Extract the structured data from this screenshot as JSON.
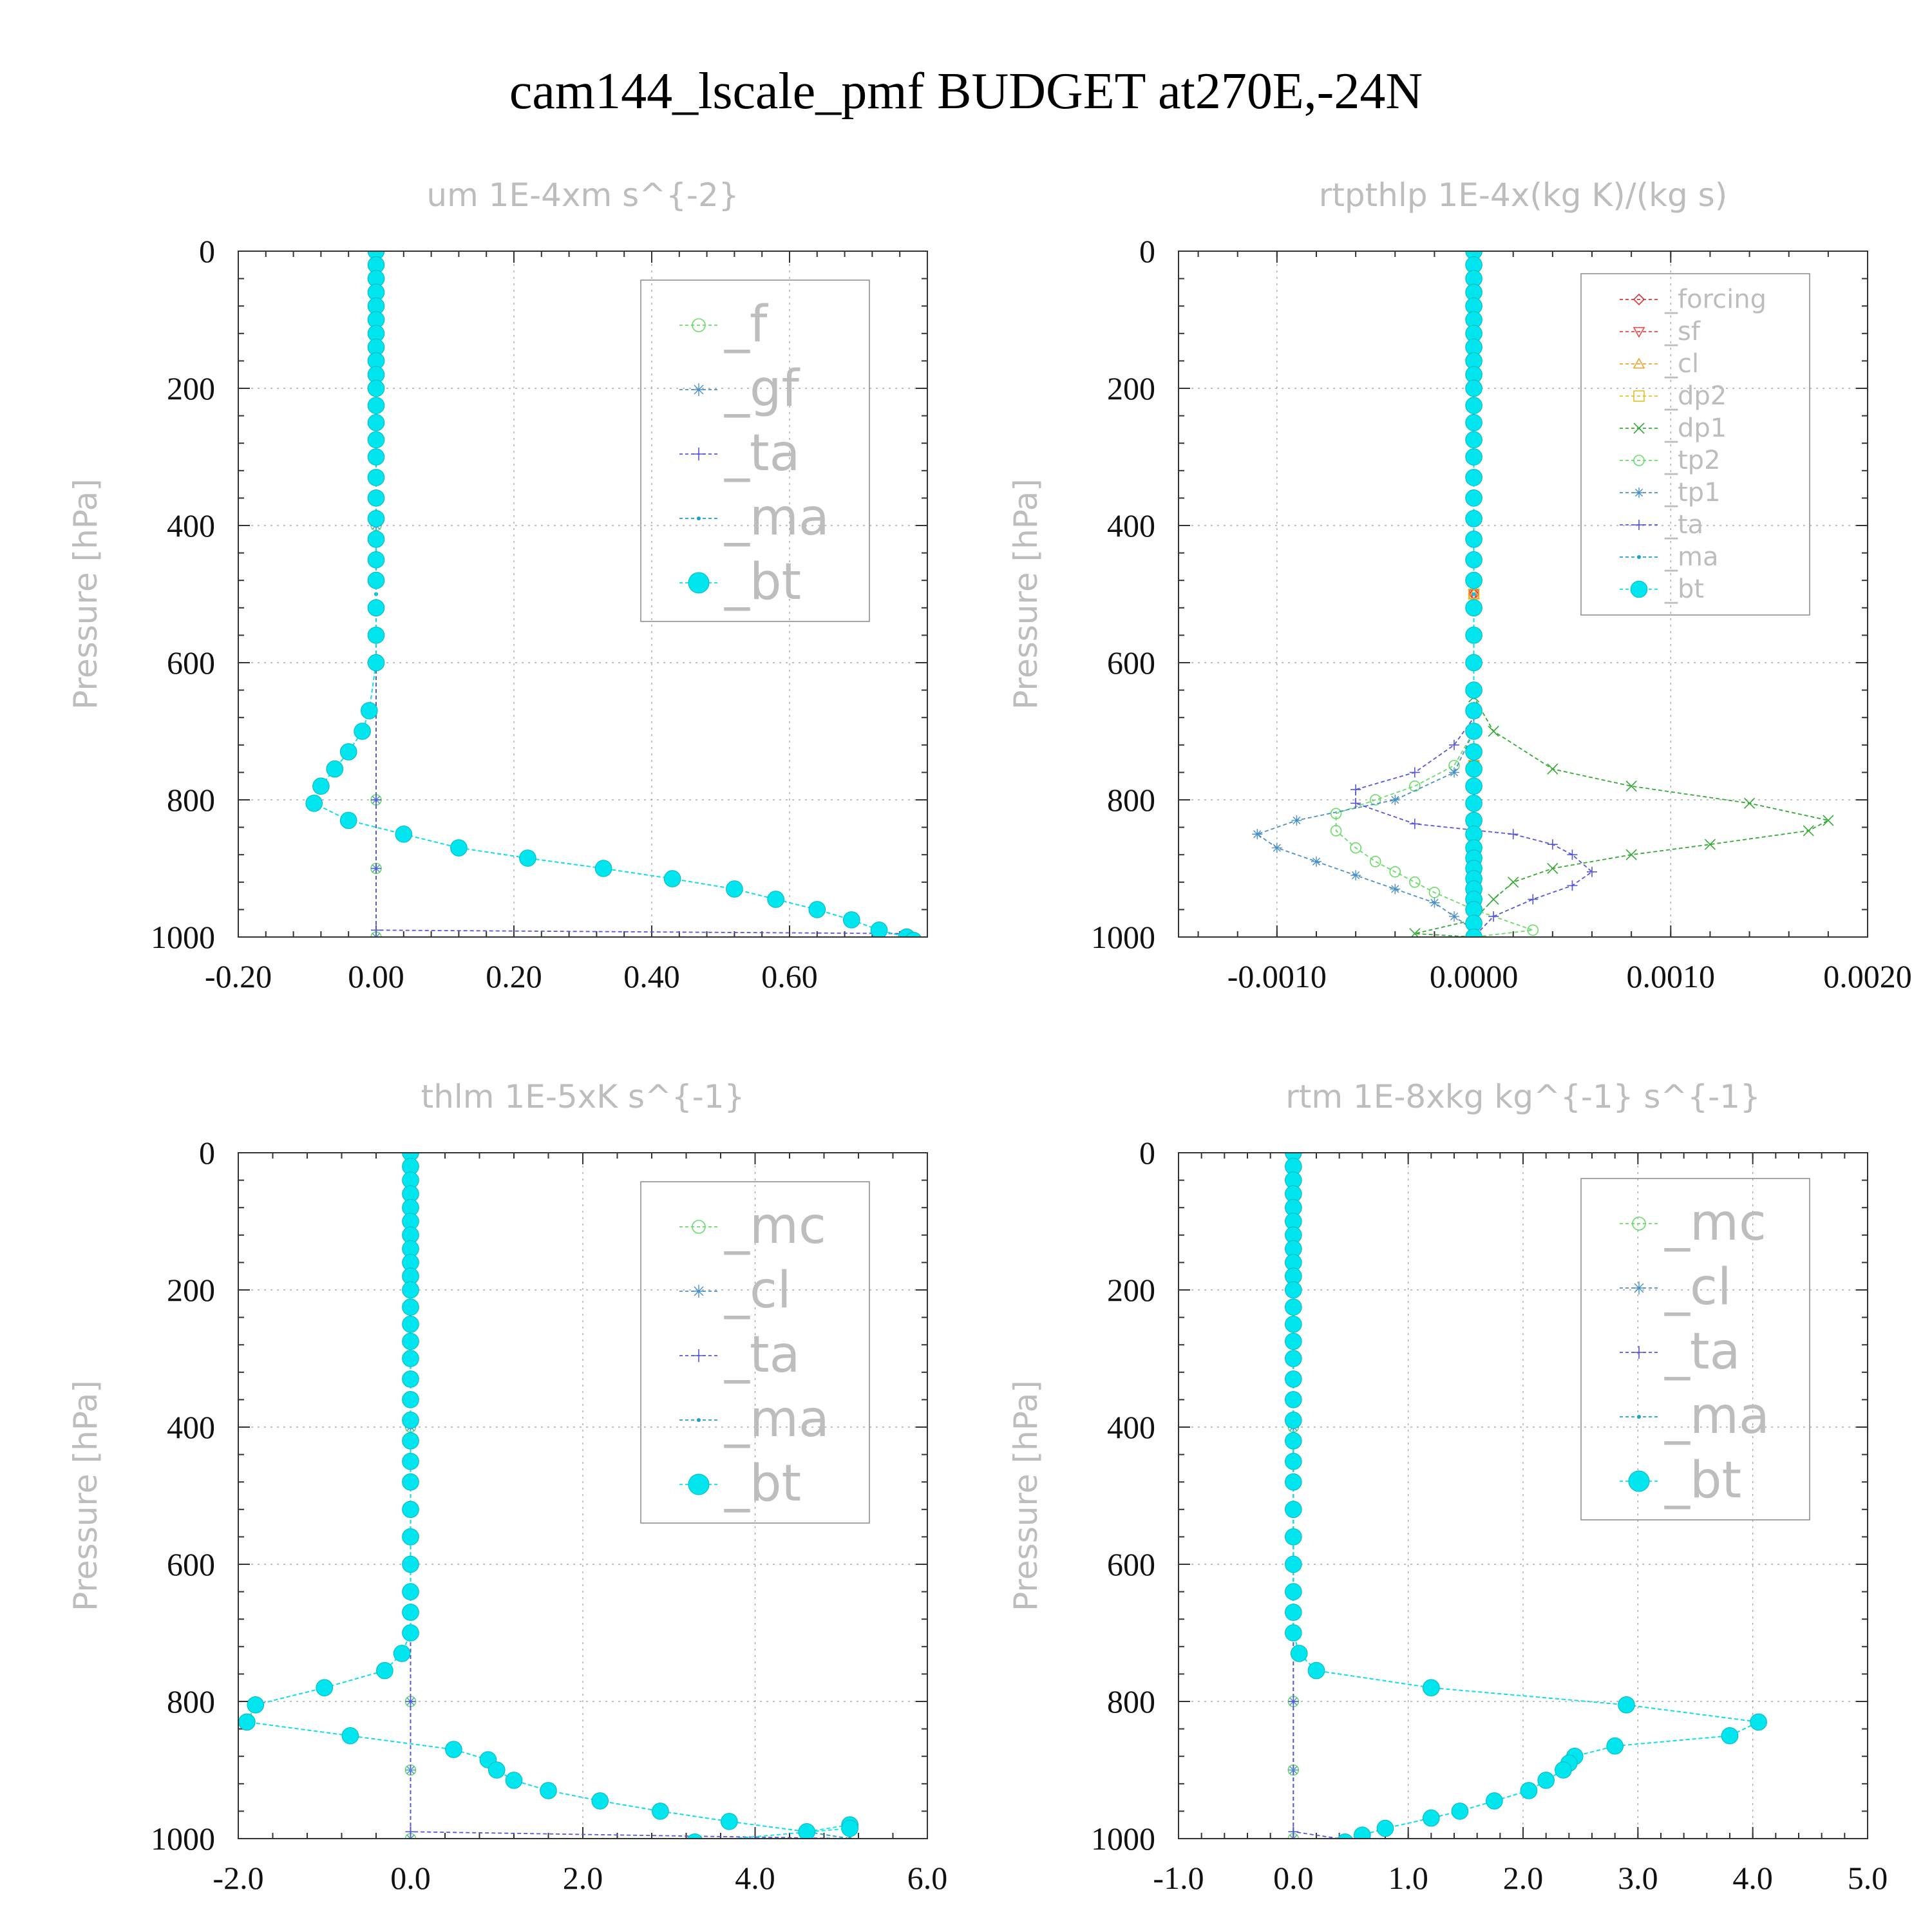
{
  "title": "cam144_lscale_pmf  BUDGET at270E,-24N",
  "colors": {
    "f": "#66dd66",
    "gf": "#4a90c8",
    "ta": "#5555dd",
    "ma": "#1aa0cc",
    "bt": "#00e5ee",
    "forcing": "#dd3333",
    "sf": "#ee4444",
    "cl_or": "#f0a030",
    "dp2": "#e8c020",
    "dp1": "#33aa33",
    "tp2": "#66dd66",
    "tp1": "#4a90c8",
    "mc": "#66dd66",
    "cl": "#4a90c8"
  },
  "chart_data": [
    {
      "type": "line",
      "title": "um  1E-4xm s^{-2}",
      "ylabel": "Pressure [hPa]",
      "xlim": [
        -0.2,
        0.8
      ],
      "ylim": [
        1000,
        0
      ],
      "xticks": [
        "-0.20",
        "0.00",
        "0.20",
        "0.40",
        "0.60"
      ],
      "yticks": [
        "0",
        "200",
        "400",
        "600",
        "800",
        "1000"
      ],
      "legend_position": "top-right",
      "series": [
        {
          "name": "_f",
          "color_key": "f",
          "marker": "circle",
          "x": [
            0,
            0,
            0,
            0,
            0,
            0,
            0
          ],
          "y": [
            0,
            200,
            400,
            600,
            800,
            900,
            1000
          ]
        },
        {
          "name": "_gf",
          "color_key": "gf",
          "marker": "star",
          "x": [
            0,
            0,
            0,
            0,
            0,
            0,
            0
          ],
          "y": [
            0,
            200,
            400,
            600,
            800,
            900,
            1000
          ]
        },
        {
          "name": "_ta",
          "color_key": "ta",
          "marker": "plus",
          "x": [
            0,
            0,
            0,
            0,
            0,
            0,
            0,
            0.77
          ],
          "y": [
            0,
            200,
            400,
            600,
            800,
            900,
            990,
            995
          ]
        },
        {
          "name": "_ma",
          "color_key": "ma",
          "marker": "dot",
          "x": [
            0,
            0,
            0,
            0,
            0,
            -0.01,
            -0.02,
            -0.04,
            -0.06,
            -0.08,
            -0.09,
            -0.04,
            0.04,
            0.12,
            0.22,
            0.33,
            0.43,
            0.52,
            0.58,
            0.64,
            0.69,
            0.73,
            0.77,
            0.78
          ],
          "y": [
            0,
            200,
            400,
            500,
            600,
            670,
            700,
            730,
            755,
            780,
            805,
            830,
            850,
            870,
            885,
            900,
            915,
            930,
            945,
            960,
            975,
            990,
            1000,
            1005
          ]
        },
        {
          "name": "_bt",
          "color_key": "bt",
          "marker": "bigdot",
          "x": [
            0,
            0,
            0,
            0,
            0,
            0,
            0,
            0,
            0,
            0,
            0,
            0,
            0,
            0,
            0,
            0,
            0,
            0,
            0,
            0,
            0,
            0,
            0,
            0,
            -0.01,
            -0.02,
            -0.04,
            -0.06,
            -0.08,
            -0.09,
            -0.04,
            0.04,
            0.12,
            0.22,
            0.33,
            0.43,
            0.52,
            0.58,
            0.64,
            0.69,
            0.73,
            0.77,
            0.78
          ],
          "y": [
            0,
            20,
            40,
            60,
            80,
            100,
            120,
            140,
            160,
            180,
            200,
            225,
            250,
            275,
            300,
            330,
            360,
            390,
            420,
            450,
            480,
            520,
            560,
            600,
            670,
            700,
            730,
            755,
            780,
            805,
            830,
            850,
            870,
            885,
            900,
            915,
            930,
            945,
            960,
            975,
            990,
            1000,
            1005
          ]
        }
      ]
    },
    {
      "type": "line",
      "title": "rtpthlp  1E-4x(kg K)/(kg s)",
      "ylabel": "Pressure [hPa]",
      "xlim": [
        -0.0015,
        0.002
      ],
      "ylim": [
        1000,
        0
      ],
      "xticks": [
        "-0.0010",
        "0.0000",
        "0.0010",
        "0.0020"
      ],
      "yticks": [
        "0",
        "200",
        "400",
        "600",
        "800",
        "1000"
      ],
      "legend_position": "top-right",
      "series": [
        {
          "name": "_forcing",
          "color_key": "forcing",
          "marker": "diamond",
          "x": [
            0,
            0,
            0,
            0,
            0
          ],
          "y": [
            0,
            250,
            500,
            750,
            1000
          ]
        },
        {
          "name": "_sf",
          "color_key": "sf",
          "marker": "tridown",
          "x": [
            0,
            0,
            0,
            0,
            0
          ],
          "y": [
            0,
            250,
            500,
            750,
            1000
          ]
        },
        {
          "name": "_cl",
          "color_key": "cl_or",
          "marker": "triup",
          "x": [
            0,
            0,
            0,
            0,
            0
          ],
          "y": [
            0,
            250,
            500,
            750,
            1000
          ]
        },
        {
          "name": "_dp2",
          "color_key": "dp2",
          "marker": "square",
          "x": [
            0,
            0,
            0,
            0,
            0
          ],
          "y": [
            0,
            250,
            500,
            750,
            1000
          ]
        },
        {
          "name": "_dp1",
          "color_key": "dp1",
          "marker": "x",
          "x": [
            0,
            0,
            0.0001,
            0.0004,
            0.0008,
            0.0014,
            0.0018,
            0.0017,
            0.0012,
            0.0008,
            0.0004,
            0.0002,
            0.0001,
            0,
            -0.0003,
            0
          ],
          "y": [
            0,
            650,
            700,
            755,
            780,
            805,
            830,
            845,
            865,
            880,
            900,
            920,
            945,
            975,
            995,
            1000
          ]
        },
        {
          "name": "_tp2",
          "color_key": "tp2",
          "marker": "circle",
          "x": [
            0,
            0,
            -0.0001,
            -0.0003,
            -0.0005,
            -0.0007,
            -0.0007,
            -0.0006,
            -0.0005,
            -0.0004,
            -0.0003,
            -0.0002,
            0,
            0.0003,
            0
          ],
          "y": [
            0,
            700,
            750,
            780,
            800,
            820,
            845,
            870,
            890,
            905,
            920,
            935,
            960,
            990,
            1000
          ]
        },
        {
          "name": "_tp1",
          "color_key": "tp1",
          "marker": "star",
          "x": [
            0,
            0,
            -0.0001,
            -0.0004,
            -0.0009,
            -0.0011,
            -0.001,
            -0.0008,
            -0.0006,
            -0.0004,
            -0.0002,
            -0.0001,
            0,
            0
          ],
          "y": [
            0,
            700,
            760,
            800,
            830,
            850,
            870,
            890,
            910,
            930,
            950,
            970,
            990,
            1000
          ]
        },
        {
          "name": "_ta",
          "color_key": "ta",
          "marker": "plus",
          "x": [
            0,
            0,
            -0.0001,
            -0.0003,
            -0.0006,
            -0.0006,
            -0.0003,
            0.0002,
            0.0004,
            0.0005,
            0.0006,
            0.0005,
            0.0003,
            0.0001,
            0
          ],
          "y": [
            0,
            680,
            720,
            760,
            785,
            805,
            835,
            850,
            865,
            880,
            905,
            925,
            945,
            970,
            1000
          ]
        },
        {
          "name": "_ma",
          "color_key": "ma",
          "marker": "dot",
          "x": [
            0,
            0,
            0,
            0,
            0
          ],
          "y": [
            0,
            250,
            500,
            750,
            1000
          ]
        },
        {
          "name": "_bt",
          "color_key": "bt",
          "marker": "bigdot",
          "x": [
            0,
            0,
            0,
            0,
            0,
            0,
            0,
            0,
            0,
            0,
            0,
            0,
            0,
            0,
            0,
            0,
            0,
            0,
            0,
            0,
            0,
            0,
            0,
            0,
            0,
            0,
            0,
            0,
            0,
            0,
            0,
            0,
            0,
            0,
            0,
            0,
            0,
            0,
            0,
            0,
            0,
            0
          ],
          "y": [
            0,
            20,
            40,
            60,
            80,
            100,
            120,
            140,
            160,
            180,
            200,
            225,
            250,
            275,
            300,
            330,
            360,
            390,
            420,
            450,
            480,
            520,
            560,
            600,
            640,
            670,
            700,
            730,
            755,
            780,
            805,
            830,
            850,
            870,
            885,
            900,
            915,
            930,
            945,
            960,
            980,
            1000
          ]
        }
      ]
    },
    {
      "type": "line",
      "title": "thlm  1E-5xK s^{-1}",
      "ylabel": "Pressure [hPa]",
      "xlim": [
        -2.0,
        6.0
      ],
      "ylim": [
        1000,
        0
      ],
      "xticks": [
        "-2.0",
        "0.0",
        "2.0",
        "4.0",
        "6.0"
      ],
      "yticks": [
        "0",
        "200",
        "400",
        "600",
        "800",
        "1000"
      ],
      "legend_position": "top-right",
      "series": [
        {
          "name": "_mc",
          "color_key": "mc",
          "marker": "circle",
          "x": [
            0,
            0,
            0,
            0,
            0,
            0,
            0
          ],
          "y": [
            0,
            200,
            400,
            600,
            800,
            900,
            1000
          ]
        },
        {
          "name": "_cl",
          "color_key": "cl",
          "marker": "star",
          "x": [
            0,
            0,
            0,
            0,
            0,
            0,
            0
          ],
          "y": [
            0,
            200,
            400,
            600,
            800,
            900,
            1000
          ]
        },
        {
          "name": "_ta",
          "color_key": "ta",
          "marker": "plus",
          "x": [
            0,
            0,
            0,
            0,
            0,
            0,
            5.1
          ],
          "y": [
            0,
            200,
            400,
            600,
            800,
            990,
            1000
          ]
        },
        {
          "name": "_ma",
          "color_key": "ma",
          "marker": "dot",
          "x": [
            0,
            0,
            0,
            -0.1,
            -0.3,
            -1.0,
            -1.8,
            -1.9,
            -0.7,
            0.5,
            0.9,
            1.0,
            1.2,
            1.6,
            2.2,
            2.9,
            3.7,
            4.6,
            5.1,
            3.3
          ],
          "y": [
            0,
            600,
            700,
            730,
            755,
            780,
            805,
            830,
            850,
            870,
            885,
            900,
            915,
            930,
            945,
            960,
            975,
            990,
            1000,
            1005
          ]
        },
        {
          "name": "_bt",
          "color_key": "bt",
          "marker": "bigdot",
          "x": [
            0,
            0,
            0,
            0,
            0,
            0,
            0,
            0,
            0,
            0,
            0,
            0,
            0,
            0,
            0,
            0,
            0,
            0,
            0,
            0,
            0,
            0,
            0,
            0,
            0,
            0,
            0,
            -0.1,
            -0.3,
            -1.0,
            -1.8,
            -1.9,
            -0.7,
            0.5,
            0.9,
            1.0,
            1.2,
            1.6,
            2.2,
            2.9,
            3.7,
            4.6,
            5.1,
            5.1,
            3.3
          ],
          "y": [
            0,
            20,
            40,
            60,
            80,
            100,
            120,
            140,
            160,
            180,
            200,
            225,
            250,
            275,
            300,
            330,
            360,
            390,
            420,
            450,
            480,
            520,
            560,
            600,
            640,
            670,
            700,
            730,
            755,
            780,
            805,
            830,
            850,
            870,
            885,
            900,
            915,
            930,
            945,
            960,
            975,
            990,
            980,
            985,
            1005
          ]
        }
      ]
    },
    {
      "type": "line",
      "title": "rtm  1E-8xkg kg^{-1} s^{-1}",
      "ylabel": "Pressure [hPa]",
      "xlim": [
        -1.0,
        5.0
      ],
      "ylim": [
        1000,
        0
      ],
      "xticks": [
        "-1.0",
        "0.0",
        "1.0",
        "2.0",
        "3.0",
        "4.0",
        "5.0"
      ],
      "yticks": [
        "0",
        "200",
        "400",
        "600",
        "800",
        "1000"
      ],
      "legend_position": "top-right",
      "series": [
        {
          "name": "_mc",
          "color_key": "mc",
          "marker": "circle",
          "x": [
            0,
            0,
            0,
            0,
            0,
            0,
            0
          ],
          "y": [
            0,
            200,
            400,
            600,
            800,
            900,
            1000
          ]
        },
        {
          "name": "_cl",
          "color_key": "cl",
          "marker": "star",
          "x": [
            0,
            0,
            0,
            0,
            0,
            0,
            0
          ],
          "y": [
            0,
            200,
            400,
            600,
            800,
            900,
            1000
          ]
        },
        {
          "name": "_ta",
          "color_key": "ta",
          "marker": "plus",
          "x": [
            0,
            0,
            0,
            0,
            0,
            0,
            0.4
          ],
          "y": [
            0,
            200,
            400,
            600,
            800,
            990,
            1000
          ]
        },
        {
          "name": "_ma",
          "color_key": "ma",
          "marker": "dot",
          "x": [
            0,
            0,
            0,
            0.05,
            0.2,
            1.2,
            2.9,
            4.05,
            3.8,
            2.8,
            2.45,
            2.4,
            2.35,
            2.2,
            2.05,
            1.75,
            1.45,
            1.2,
            0.8,
            0.6,
            0.45,
            0.4
          ],
          "y": [
            0,
            600,
            700,
            730,
            755,
            780,
            805,
            830,
            850,
            865,
            880,
            890,
            900,
            915,
            930,
            945,
            960,
            970,
            985,
            995,
            1005,
            1012
          ]
        },
        {
          "name": "_bt",
          "color_key": "bt",
          "marker": "bigdot",
          "x": [
            0,
            0,
            0,
            0,
            0,
            0,
            0,
            0,
            0,
            0,
            0,
            0,
            0,
            0,
            0,
            0,
            0,
            0,
            0,
            0,
            0,
            0,
            0,
            0,
            0,
            0,
            0,
            0.05,
            0.2,
            1.2,
            2.9,
            4.05,
            3.8,
            2.8,
            2.45,
            2.4,
            2.35,
            2.2,
            2.05,
            1.75,
            1.45,
            1.2,
            0.8,
            0.6,
            0.45,
            0.4
          ],
          "y": [
            0,
            20,
            40,
            60,
            80,
            100,
            120,
            140,
            160,
            180,
            200,
            225,
            250,
            275,
            300,
            330,
            360,
            390,
            420,
            450,
            480,
            520,
            560,
            600,
            640,
            670,
            700,
            730,
            755,
            780,
            805,
            830,
            850,
            865,
            880,
            890,
            900,
            915,
            930,
            945,
            960,
            970,
            985,
            995,
            1005,
            1012
          ]
        }
      ]
    }
  ]
}
